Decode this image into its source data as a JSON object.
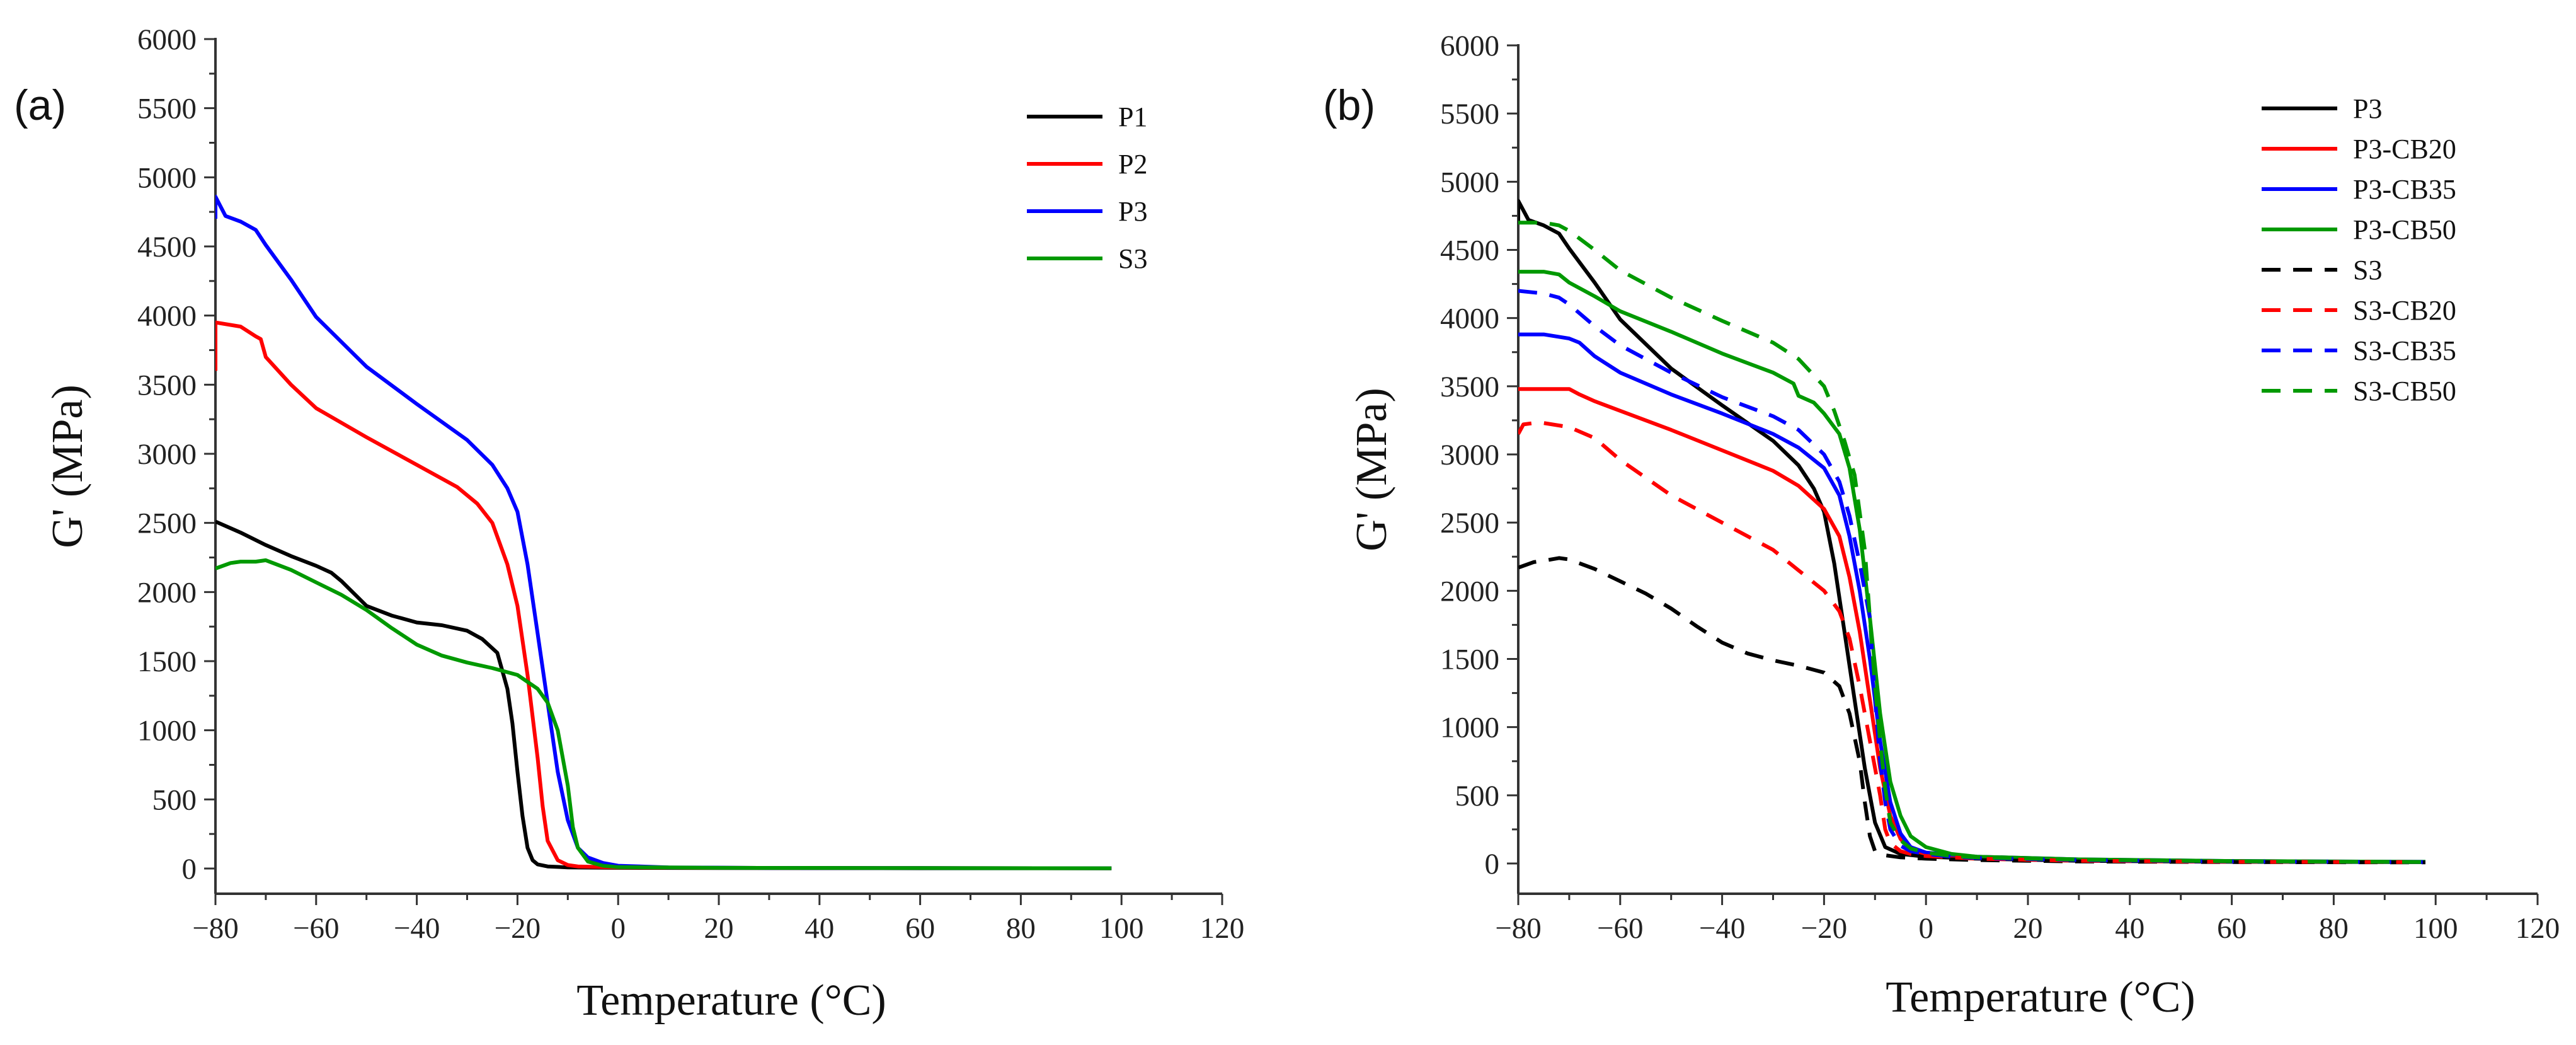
{
  "chart_data": [
    {
      "panel_label": "(a)",
      "type": "line",
      "xlabel": "Temperature (°C)",
      "ylabel": "G' (MPa)",
      "xlim": [
        -80,
        120
      ],
      "ylim": [
        0,
        6000
      ],
      "xticks": [
        -80,
        -60,
        -40,
        -20,
        0,
        20,
        40,
        60,
        80,
        100,
        120
      ],
      "yticks": [
        0,
        500,
        1000,
        1500,
        2000,
        2500,
        3000,
        3500,
        4000,
        4500,
        5000,
        5500,
        6000
      ],
      "legend_position": "top-right",
      "series": [
        {
          "name": "P1",
          "color": "#000000",
          "dash": "solid",
          "x": [
            -80,
            -75,
            -70,
            -65,
            -60,
            -57,
            -55,
            -50,
            -45,
            -40,
            -35,
            -30,
            -27,
            -24,
            -22,
            -21,
            -20,
            -19,
            -18,
            -17,
            -16,
            -14,
            -10,
            0,
            20,
            60,
            98
          ],
          "y": [
            2510,
            2430,
            2340,
            2260,
            2190,
            2140,
            2080,
            1900,
            1830,
            1780,
            1760,
            1720,
            1660,
            1560,
            1300,
            1050,
            700,
            380,
            150,
            60,
            30,
            15,
            8,
            5,
            3,
            2,
            2
          ]
        },
        {
          "name": "P2",
          "color": "#ff0000",
          "dash": "solid",
          "x": [
            -80,
            -80,
            -75,
            -72,
            -71,
            -70,
            -65,
            -60,
            -50,
            -40,
            -32,
            -28,
            -25,
            -22,
            -20,
            -18,
            -16,
            -15,
            -14,
            -12,
            -10,
            -8,
            0,
            20,
            60,
            98
          ],
          "y": [
            3600,
            3950,
            3920,
            3850,
            3830,
            3700,
            3500,
            3330,
            3120,
            2920,
            2760,
            2640,
            2500,
            2200,
            1900,
            1400,
            800,
            450,
            200,
            60,
            25,
            15,
            8,
            5,
            3,
            2
          ]
        },
        {
          "name": "P3",
          "color": "#0000ff",
          "dash": "solid",
          "x": [
            -80,
            -80,
            -78,
            -75,
            -72,
            -70,
            -65,
            -60,
            -50,
            -40,
            -30,
            -25,
            -22,
            -20,
            -18,
            -16,
            -14,
            -12,
            -10,
            -8,
            -6,
            -3,
            0,
            10,
            30,
            60,
            98
          ],
          "y": [
            4700,
            4860,
            4720,
            4680,
            4620,
            4510,
            4260,
            3990,
            3630,
            3360,
            3100,
            2920,
            2750,
            2580,
            2200,
            1700,
            1200,
            700,
            350,
            150,
            80,
            40,
            20,
            8,
            4,
            3,
            2
          ]
        },
        {
          "name": "S3",
          "color": "#009900",
          "dash": "solid",
          "x": [
            -80,
            -77,
            -75,
            -72,
            -70,
            -65,
            -60,
            -55,
            -50,
            -45,
            -40,
            -35,
            -30,
            -25,
            -20,
            -16,
            -14,
            -12,
            -10,
            -9,
            -8,
            -6,
            -3,
            0,
            20,
            60,
            98
          ],
          "y": [
            2170,
            2210,
            2220,
            2220,
            2230,
            2160,
            2070,
            1980,
            1870,
            1740,
            1620,
            1540,
            1490,
            1450,
            1400,
            1300,
            1200,
            1000,
            600,
            300,
            150,
            50,
            20,
            10,
            5,
            3,
            2
          ]
        }
      ]
    },
    {
      "panel_label": "(b)",
      "type": "line",
      "xlabel": "Temperature (°C)",
      "ylabel": "G' (MPa)",
      "xlim": [
        -80,
        120
      ],
      "ylim": [
        0,
        6000
      ],
      "xticks": [
        -80,
        -60,
        -40,
        -20,
        0,
        20,
        40,
        60,
        80,
        100,
        120
      ],
      "yticks": [
        0,
        500,
        1000,
        1500,
        2000,
        2500,
        3000,
        3500,
        4000,
        4500,
        5000,
        5500,
        6000
      ],
      "legend_position": "top-right",
      "series": [
        {
          "name": "P3",
          "color": "#000000",
          "dash": "solid",
          "x": [
            -80,
            -80,
            -78,
            -75,
            -72,
            -70,
            -65,
            -60,
            -50,
            -40,
            -30,
            -25,
            -22,
            -20,
            -18,
            -16,
            -14,
            -12,
            -10,
            -8,
            -5,
            0,
            10,
            30,
            60,
            98
          ],
          "y": [
            4700,
            4860,
            4720,
            4680,
            4620,
            4510,
            4260,
            3990,
            3630,
            3360,
            3100,
            2920,
            2750,
            2580,
            2200,
            1700,
            1200,
            700,
            300,
            120,
            70,
            50,
            35,
            20,
            12,
            10
          ]
        },
        {
          "name": "P3-CB20",
          "color": "#ff0000",
          "dash": "solid",
          "x": [
            -80,
            -75,
            -70,
            -68,
            -65,
            -60,
            -50,
            -40,
            -30,
            -25,
            -20,
            -17,
            -15,
            -13,
            -11,
            -9,
            -7,
            -5,
            -3,
            0,
            10,
            30,
            60,
            98
          ],
          "y": [
            3480,
            3480,
            3480,
            3440,
            3390,
            3320,
            3180,
            3030,
            2880,
            2770,
            2600,
            2400,
            2100,
            1700,
            1200,
            700,
            350,
            180,
            100,
            70,
            40,
            25,
            15,
            10
          ]
        },
        {
          "name": "P3-CB35",
          "color": "#0000ff",
          "dash": "solid",
          "x": [
            -80,
            -75,
            -70,
            -68,
            -65,
            -60,
            -50,
            -40,
            -30,
            -25,
            -20,
            -17,
            -15,
            -13,
            -11,
            -9,
            -7,
            -5,
            -3,
            0,
            10,
            30,
            60,
            98
          ],
          "y": [
            3880,
            3880,
            3850,
            3820,
            3720,
            3600,
            3440,
            3300,
            3150,
            3050,
            2900,
            2700,
            2400,
            2000,
            1500,
            900,
            450,
            220,
            120,
            80,
            50,
            30,
            18,
            12
          ]
        },
        {
          "name": "P3-CB50",
          "color": "#009900",
          "dash": "solid",
          "x": [
            -80,
            -75,
            -72,
            -70,
            -65,
            -60,
            -50,
            -40,
            -30,
            -26,
            -25,
            -22,
            -20,
            -17,
            -15,
            -13,
            -11,
            -9,
            -7,
            -5,
            -3,
            0,
            5,
            10,
            30,
            60,
            98
          ],
          "y": [
            4340,
            4340,
            4320,
            4260,
            4160,
            4050,
            3900,
            3740,
            3600,
            3520,
            3430,
            3380,
            3300,
            3150,
            2900,
            2450,
            1800,
            1100,
            600,
            350,
            200,
            120,
            70,
            50,
            30,
            18,
            12
          ]
        },
        {
          "name": "S3",
          "color": "#000000",
          "dash": "dashed",
          "x": [
            -80,
            -77,
            -75,
            -72,
            -70,
            -65,
            -60,
            -55,
            -50,
            -45,
            -40,
            -35,
            -30,
            -25,
            -20,
            -17,
            -15,
            -13,
            -12,
            -11,
            -10,
            -8,
            -5,
            0,
            10,
            30,
            60,
            98
          ],
          "y": [
            2170,
            2210,
            2220,
            2240,
            2230,
            2160,
            2070,
            1980,
            1870,
            1740,
            1620,
            1540,
            1490,
            1450,
            1400,
            1300,
            1100,
            750,
            450,
            200,
            90,
            60,
            45,
            35,
            25,
            15,
            10,
            8
          ]
        },
        {
          "name": "S3-CB20",
          "color": "#ff0000",
          "dash": "dashed",
          "x": [
            -80,
            -79,
            -77,
            -75,
            -70,
            -65,
            -60,
            -50,
            -40,
            -30,
            -25,
            -20,
            -17,
            -15,
            -13,
            -11,
            -9,
            -8,
            -7,
            -5,
            -3,
            0,
            10,
            30,
            60,
            98
          ],
          "y": [
            3150,
            3220,
            3230,
            3230,
            3200,
            3120,
            2960,
            2700,
            2500,
            2300,
            2150,
            2000,
            1850,
            1650,
            1300,
            900,
            500,
            250,
            150,
            90,
            70,
            55,
            35,
            20,
            12,
            10
          ]
        },
        {
          "name": "S3-CB35",
          "color": "#0000ff",
          "dash": "dashed",
          "x": [
            -80,
            -75,
            -72,
            -70,
            -65,
            -60,
            -50,
            -40,
            -30,
            -25,
            -20,
            -17,
            -15,
            -13,
            -11,
            -10,
            -9,
            -8,
            -7,
            -5,
            -3,
            0,
            5,
            10,
            30,
            60,
            98
          ],
          "y": [
            4200,
            4180,
            4150,
            4100,
            3940,
            3800,
            3600,
            3420,
            3280,
            3180,
            3000,
            2800,
            2550,
            2200,
            1800,
            1200,
            750,
            450,
            250,
            130,
            90,
            70,
            50,
            40,
            25,
            15,
            10
          ]
        },
        {
          "name": "S3-CB50",
          "color": "#009900",
          "dash": "dashed",
          "x": [
            -80,
            -75,
            -72,
            -70,
            -65,
            -60,
            -50,
            -40,
            -30,
            -25,
            -20,
            -18,
            -16,
            -14,
            -12,
            -11,
            -10,
            -9,
            -8,
            -7,
            -5,
            -3,
            0,
            5,
            10,
            30,
            60,
            98
          ],
          "y": [
            4700,
            4700,
            4680,
            4640,
            4500,
            4350,
            4150,
            3980,
            3820,
            3700,
            3500,
            3320,
            3100,
            2850,
            2300,
            1800,
            1300,
            900,
            550,
            300,
            170,
            110,
            80,
            55,
            45,
            28,
            16,
            10
          ]
        }
      ]
    }
  ]
}
